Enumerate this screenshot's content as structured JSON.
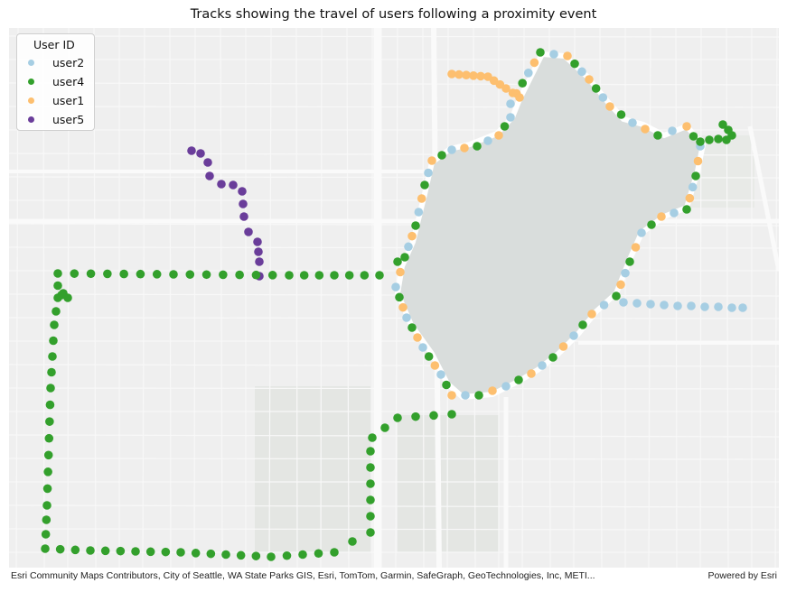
{
  "title": "Tracks showing the travel of users following a proximity event",
  "legend": {
    "title": "User ID",
    "entries": [
      {
        "label": "user2",
        "color": "#a6cee3"
      },
      {
        "label": "user4",
        "color": "#33a02c"
      },
      {
        "label": "user1",
        "color": "#fdbf6f"
      },
      {
        "label": "user5",
        "color": "#6a3d9a"
      }
    ]
  },
  "attribution": {
    "sources": "Esri Community Maps Contributors, City of Seattle, WA State Parks GIS, Esri, TomTom, Garmin, SafeGraph, GeoTechnologies, Inc, METI...",
    "powered_by": "Powered by Esri"
  },
  "basemap": {
    "land_color": "#efefef",
    "water_color": "#d9dddc",
    "park_color": "#e4e6e3",
    "road_color": "#ffffff"
  }
}
